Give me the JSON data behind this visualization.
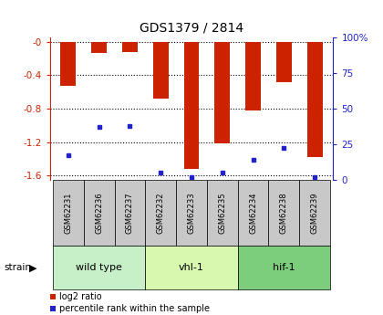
{
  "title": "GDS1379 / 2814",
  "samples": [
    "GSM62231",
    "GSM62236",
    "GSM62237",
    "GSM62232",
    "GSM62233",
    "GSM62235",
    "GSM62234",
    "GSM62238",
    "GSM62239"
  ],
  "log2_ratio": [
    -0.53,
    -0.13,
    -0.12,
    -0.68,
    -1.52,
    -1.22,
    -0.82,
    -0.48,
    -1.38
  ],
  "percentile": [
    17,
    37,
    38,
    5,
    2,
    5,
    14,
    22,
    2
  ],
  "groups": [
    {
      "label": "wild type",
      "start": 0,
      "end": 3,
      "color": "#c8f0c8"
    },
    {
      "label": "vhl-1",
      "start": 3,
      "end": 6,
      "color": "#d8f8b0"
    },
    {
      "label": "hif-1",
      "start": 6,
      "end": 9,
      "color": "#7ccd7c"
    }
  ],
  "ylim_left": [
    -1.65,
    0.05
  ],
  "ylim_right": [
    0,
    100
  ],
  "bar_color": "#cc2200",
  "dot_color": "#2222cc",
  "bar_width": 0.5,
  "grid_color": "#000000",
  "axis_left_color": "#cc2200",
  "axis_right_color": "#2222cc",
  "bg_plot": "#ffffff",
  "bg_label": "#c8c8c8",
  "strain_text": "strain",
  "legend_items": [
    {
      "color": "#cc2200",
      "label": "log2 ratio"
    },
    {
      "color": "#2222cc",
      "label": "percentile rank within the sample"
    }
  ],
  "yticks_left": [
    -1.6,
    -1.2,
    -0.8,
    -0.4,
    0.0
  ],
  "ytick_labels_left": [
    "-1.6",
    "-1.2",
    "-0.8",
    "-0.4",
    "-0"
  ],
  "yticks_right": [
    0,
    25,
    50,
    75,
    100
  ],
  "ytick_labels_right": [
    "0",
    "25",
    "50",
    "75",
    "100%"
  ]
}
